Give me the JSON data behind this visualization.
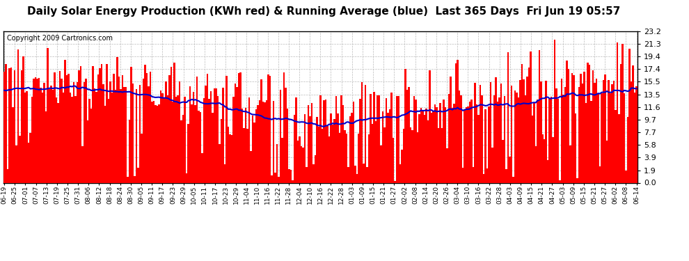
{
  "title": "Daily Solar Energy Production (KWh red) & Running Average (blue)  Last 365 Days  Fri Jun 19 05:57",
  "copyright": "Copyright 2009 Cartronics.com",
  "yticks": [
    0.0,
    1.9,
    3.9,
    5.8,
    7.7,
    9.7,
    11.6,
    13.5,
    15.5,
    17.4,
    19.4,
    21.3,
    23.2
  ],
  "ymax": 23.2,
  "ymin": 0.0,
  "bar_color": "#ff0000",
  "line_color": "#0000cc",
  "background_color": "#ffffff",
  "grid_color": "#bbbbbb",
  "title_fontsize": 11,
  "copyright_fontsize": 7,
  "xtick_labels": [
    "06-19",
    "06-25",
    "07-01",
    "07-07",
    "07-13",
    "07-19",
    "07-25",
    "07-31",
    "08-06",
    "08-12",
    "08-18",
    "08-24",
    "08-30",
    "09-05",
    "09-11",
    "09-17",
    "09-23",
    "09-29",
    "10-05",
    "10-11",
    "10-17",
    "10-23",
    "10-29",
    "11-04",
    "11-10",
    "11-16",
    "11-22",
    "11-28",
    "12-04",
    "12-10",
    "12-16",
    "12-22",
    "12-28",
    "01-03",
    "01-09",
    "01-15",
    "01-21",
    "01-27",
    "02-02",
    "02-08",
    "02-14",
    "02-20",
    "02-26",
    "03-04",
    "03-10",
    "03-16",
    "03-22",
    "03-28",
    "04-03",
    "04-09",
    "04-15",
    "04-21",
    "04-27",
    "05-03",
    "05-09",
    "05-15",
    "05-21",
    "05-27",
    "06-02",
    "06-08",
    "06-14"
  ]
}
